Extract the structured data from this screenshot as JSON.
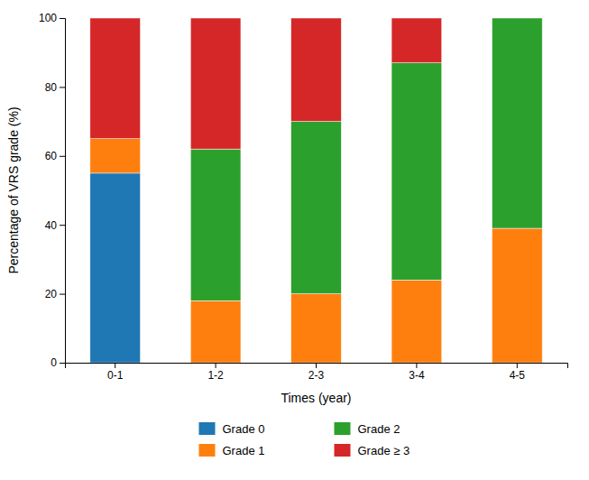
{
  "chart_data": {
    "type": "bar",
    "stacked": true,
    "categories": [
      "0-1",
      "1-2",
      "2-3",
      "3-4",
      "4-5"
    ],
    "series": [
      {
        "name": "Grade 0",
        "values": [
          55,
          0,
          0,
          0,
          0
        ]
      },
      {
        "name": "Grade 1",
        "values": [
          10,
          18,
          20,
          24,
          39
        ]
      },
      {
        "name": "Grade 2",
        "values": [
          0,
          44,
          50,
          63,
          61
        ]
      },
      {
        "name": "Grade ≥ 3",
        "values": [
          35,
          38,
          30,
          13,
          0
        ]
      }
    ],
    "xlabel": "Times (year)",
    "ylabel": "Percentage of VRS grade (%)",
    "ylim": [
      0,
      100
    ],
    "yticks": [
      0,
      20,
      40,
      60,
      80,
      100
    ],
    "grid": false,
    "legend": "bottom"
  }
}
